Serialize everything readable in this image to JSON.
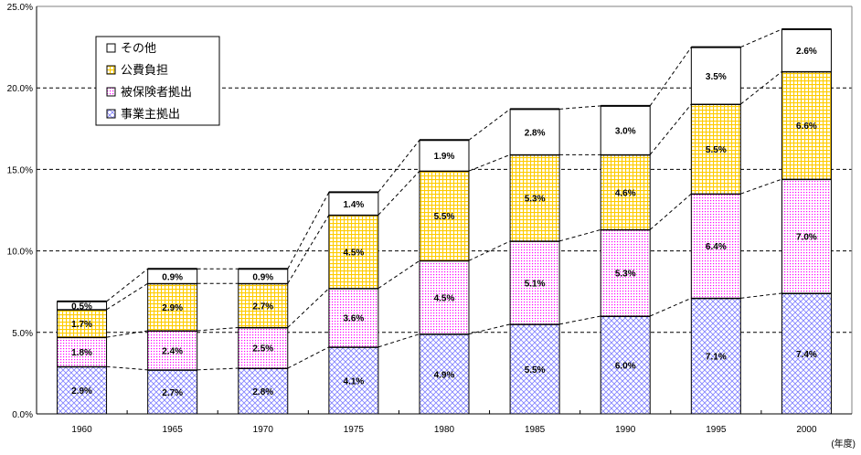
{
  "chart_data": {
    "type": "bar",
    "stacked": true,
    "categories": [
      "1960",
      "1965",
      "1970",
      "1975",
      "1980",
      "1985",
      "1990",
      "1995",
      "2000"
    ],
    "xlabel": "(年度)",
    "ylabel": "",
    "ylim": [
      0,
      25
    ],
    "yticks": [
      "0.0%",
      "5.0%",
      "10.0%",
      "15.0%",
      "20.0%",
      "25.0%"
    ],
    "grid": true,
    "legend_position": "top-left",
    "series": [
      {
        "name": "事業主拠出",
        "color": "#8080ff",
        "pattern": "crosshatch",
        "values": [
          2.9,
          2.7,
          2.8,
          4.1,
          4.9,
          5.5,
          6.0,
          7.1,
          7.4
        ],
        "labels": [
          "2.9%",
          "2.7%",
          "2.8%",
          "4.1%",
          "4.9%",
          "5.5%",
          "6.0%",
          "7.1%",
          "7.4%"
        ]
      },
      {
        "name": "被保険者拠出",
        "color": "#ff00ff",
        "pattern": "dots",
        "values": [
          1.8,
          2.4,
          2.5,
          3.6,
          4.5,
          5.1,
          5.3,
          6.4,
          7.0
        ],
        "labels": [
          "1.8%",
          "2.4%",
          "2.5%",
          "3.6%",
          "4.5%",
          "5.1%",
          "5.3%",
          "6.4%",
          "7.0%"
        ]
      },
      {
        "name": "公費負担",
        "color": "#ffcc00",
        "pattern": "grid",
        "values": [
          1.7,
          2.9,
          2.7,
          4.5,
          5.5,
          5.3,
          4.6,
          5.5,
          6.6
        ],
        "labels": [
          "1.7%",
          "2.9%",
          "2.7%",
          "4.5%",
          "5.5%",
          "5.3%",
          "4.6%",
          "5.5%",
          "6.6%"
        ]
      },
      {
        "name": "その他",
        "color": "#ffffff",
        "pattern": "solid",
        "values": [
          0.5,
          0.9,
          0.9,
          1.4,
          1.9,
          2.8,
          3.0,
          3.5,
          2.6
        ],
        "labels": [
          "0.5%",
          "0.9%",
          "0.9%",
          "1.4%",
          "1.9%",
          "2.8%",
          "3.0%",
          "3.5%",
          "2.6%"
        ]
      }
    ]
  }
}
